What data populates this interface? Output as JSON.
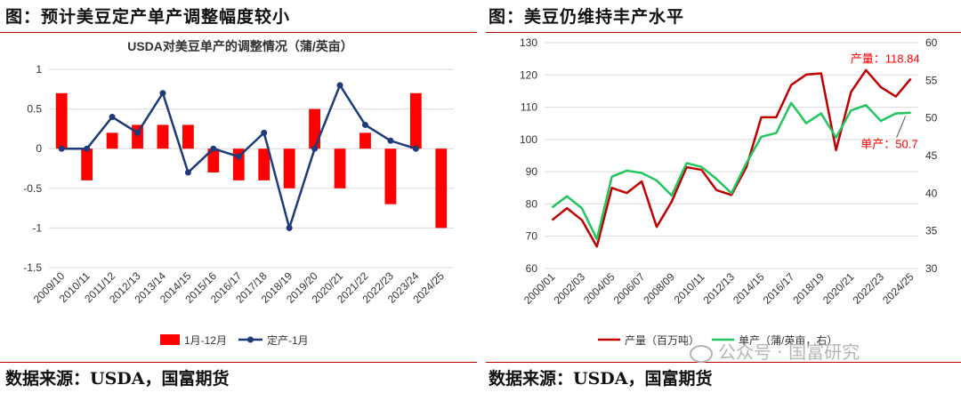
{
  "left_panel": {
    "header": "图：预计美豆定产单产调整幅度较小"
  },
  "right_panel": {
    "header": "图：美豆仍维持丰产水平"
  },
  "footer": {
    "left_source": "数据来源：USDA，国富期货",
    "right_source": "数据来源：USDA，国富期货"
  },
  "watermark": {
    "text": "公众号 · 国富研究",
    "icon": "wechat-logo-icon"
  },
  "colors": {
    "red": "#ff0000",
    "navy": "#1f3a7a",
    "dark_red": "#c00000",
    "green": "#22c55e",
    "grid": "#d9d9d9",
    "title_rule": "#c00000"
  },
  "chart_data": [
    {
      "type": "bar+line",
      "title": "USDA对美豆单产的调整情况（蒲/英亩）",
      "categories": [
        "2009/10",
        "2010/11",
        "2011/12",
        "2012/13",
        "2013/14",
        "2014/15",
        "2015/16",
        "2016/17",
        "2017/18",
        "2018/19",
        "2019/20",
        "2020/21",
        "2021/22",
        "2022/23",
        "2023/24",
        "2024/25"
      ],
      "ylim": [
        -1.5,
        1
      ],
      "yticks": [
        "1",
        "0.5",
        "0",
        "-0.5",
        "-1",
        "-1.5"
      ],
      "ytick_values": [
        1,
        0.5,
        0,
        -0.5,
        -1,
        -1.5
      ],
      "grid": true,
      "legend_position": "bottom",
      "series": [
        {
          "name": "1月-12月",
          "type": "bar",
          "color": "#ff0000",
          "values": [
            0.7,
            -0.4,
            0.2,
            0.3,
            0.3,
            0.3,
            -0.3,
            -0.4,
            -0.4,
            -0.5,
            0.5,
            -0.5,
            0.2,
            -0.7,
            0.7,
            -1.0
          ]
        },
        {
          "name": "定产-1月",
          "type": "line",
          "color": "#1f3a7a",
          "values": [
            0,
            0,
            0.4,
            0.2,
            0.7,
            -0.3,
            0,
            -0.1,
            0.2,
            -1.0,
            0,
            0.8,
            0.3,
            0.1,
            0,
            null
          ]
        }
      ]
    },
    {
      "type": "line",
      "x": [
        "2000/01",
        "2001/02",
        "2002/03",
        "2003/04",
        "2004/05",
        "2005/06",
        "2006/07",
        "2007/08",
        "2008/09",
        "2009/10",
        "2010/11",
        "2011/12",
        "2012/13",
        "2013/14",
        "2014/15",
        "2015/16",
        "2016/17",
        "2017/18",
        "2018/19",
        "2019/20",
        "2020/21",
        "2021/22",
        "2022/23",
        "2023/24",
        "2024/25"
      ],
      "xticks": [
        "2000/01",
        "2002/03",
        "2004/05",
        "2006/07",
        "2008/09",
        "2010/11",
        "2012/13",
        "2014/15",
        "2016/17",
        "2018/19",
        "2020/21",
        "2022/23",
        "2024/25"
      ],
      "ylim_left": [
        60,
        130
      ],
      "yticks_left": [
        "130",
        "120",
        "110",
        "100",
        "90",
        "80",
        "70",
        "60"
      ],
      "ytick_values_left": [
        130,
        120,
        110,
        100,
        90,
        80,
        70,
        60
      ],
      "ylim_right": [
        30,
        60
      ],
      "yticks_right": [
        "60",
        "55",
        "50",
        "45",
        "40",
        "35",
        "30"
      ],
      "ytick_values_right": [
        60,
        55,
        50,
        45,
        40,
        35,
        30
      ],
      "grid": true,
      "legend_position": "bottom",
      "series": [
        {
          "name": "产量（百万吨）",
          "axis": "left",
          "color": "#c00000",
          "values": [
            75.0,
            78.7,
            75.0,
            66.8,
            85.0,
            83.4,
            87.0,
            72.9,
            80.7,
            91.4,
            90.6,
            84.3,
            82.8,
            91.4,
            106.9,
            106.9,
            116.9,
            120.1,
            120.5,
            96.7,
            114.7,
            121.5,
            116.2,
            113.3,
            118.84
          ]
        },
        {
          "name": "单产（蒲/英亩，右）",
          "axis": "right",
          "color": "#22c55e",
          "values": [
            38.1,
            39.6,
            38.0,
            33.9,
            42.2,
            43.0,
            42.7,
            41.7,
            39.7,
            44.0,
            43.5,
            41.9,
            40.0,
            44.0,
            47.5,
            48.0,
            52.0,
            49.3,
            50.6,
            47.4,
            51.0,
            51.7,
            49.6,
            50.6,
            50.7
          ]
        }
      ],
      "annotations": [
        {
          "series": "产量（百万吨）",
          "text": "产量：118.84",
          "color": "#ff0000"
        },
        {
          "series": "单产（蒲/英亩，右）",
          "text": "单产：50.7",
          "color": "#ff0000"
        }
      ]
    }
  ]
}
